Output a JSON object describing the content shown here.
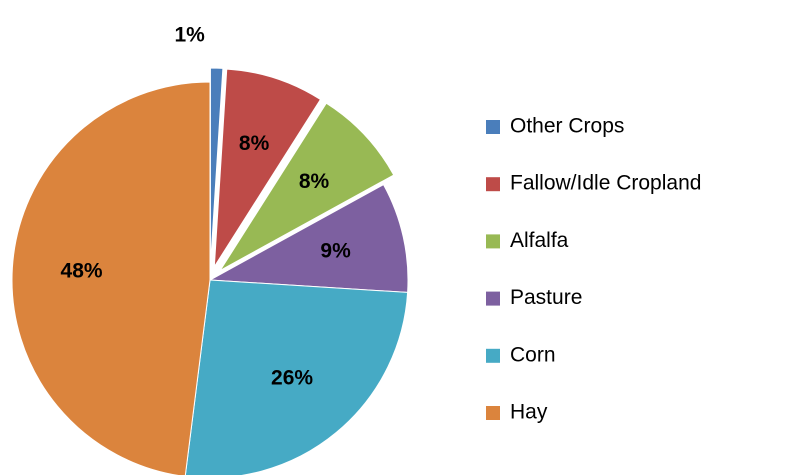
{
  "chart_data": {
    "type": "pie",
    "categories": [
      "Other Crops",
      "Fallow/Idle Cropland",
      "Alfalfa",
      "Pasture",
      "Corn",
      "Hay"
    ],
    "values": [
      1,
      8,
      8,
      9,
      26,
      48
    ],
    "value_labels": [
      "1%",
      "8%",
      "8%",
      "9%",
      "26%",
      "48%"
    ],
    "colors": [
      "#4a7ebb",
      "#be4b48",
      "#98b954",
      "#7d60a0",
      "#46aac5",
      "#db843d"
    ],
    "explode": [
      true,
      true,
      true,
      false,
      false,
      false
    ],
    "legend": "right"
  }
}
